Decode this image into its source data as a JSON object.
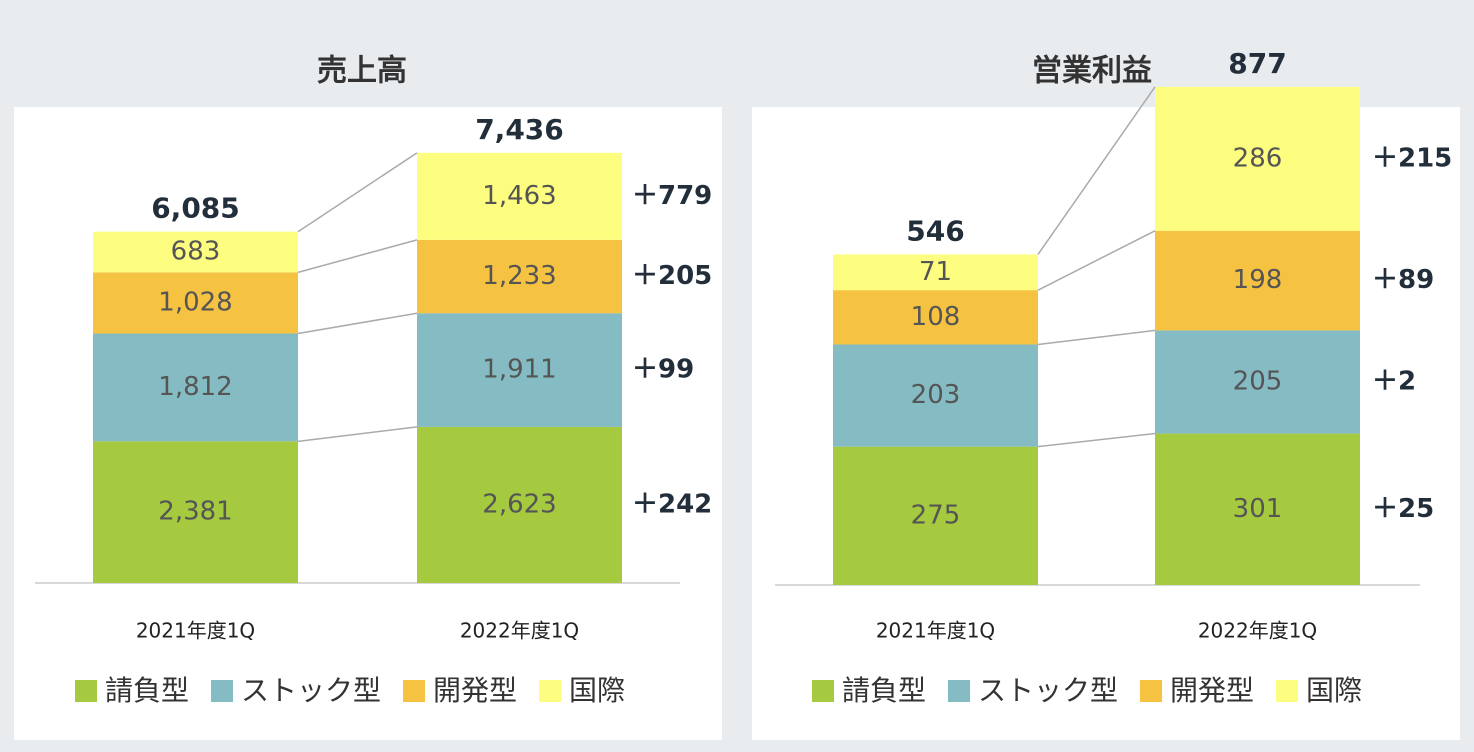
{
  "chart_data": [
    {
      "type": "stacked-bar",
      "title": "売上高",
      "categories": [
        "2021年度1Q",
        "2022年度1Q"
      ],
      "series": [
        {
          "name": "請負型",
          "color": "#a5c93f",
          "values": [
            2381,
            2623
          ],
          "value_labels": [
            "2,381",
            "2,623"
          ]
        },
        {
          "name": "ストック型",
          "color": "#85bcc4",
          "values": [
            1812,
            1911
          ],
          "value_labels": [
            "1,812",
            "1,911"
          ]
        },
        {
          "name": "開発型",
          "color": "#f5c242",
          "values": [
            1028,
            1233
          ],
          "value_labels": [
            "1,028",
            "1,233"
          ]
        },
        {
          "name": "国際",
          "color": "#fdfe7f",
          "values": [
            683,
            1463
          ],
          "value_labels": [
            "683",
            "1,463"
          ]
        }
      ],
      "totals": {
        "values": [
          6085,
          7436
        ],
        "value_labels": [
          "6,085",
          "7,436"
        ]
      },
      "differences": {
        "values": [
          242,
          99,
          205,
          779
        ],
        "value_labels": [
          "＋242",
          "＋99",
          "＋205",
          "＋779"
        ]
      },
      "ylim": [
        0,
        8000
      ]
    },
    {
      "type": "stacked-bar",
      "title": "営業利益",
      "categories": [
        "2021年度1Q",
        "2022年度1Q"
      ],
      "series": [
        {
          "name": "請負型",
          "color": "#a5c93f",
          "values": [
            275,
            301
          ]
        },
        {
          "name": "ストック型",
          "color": "#85bcc4",
          "values": [
            203,
            205
          ]
        },
        {
          "name": "開発型",
          "color": "#f5c242",
          "values": [
            108,
            198
          ]
        },
        {
          "name": "国際",
          "color": "#fdfe7f",
          "values": [
            71,
            286
          ]
        }
      ],
      "totals": {
        "values": [
          546,
          877
        ]
      },
      "differences": {
        "values": [
          25,
          2,
          89,
          215
        ],
        "value_labels": [
          "＋25",
          "＋2",
          "＋89",
          "＋215"
        ]
      },
      "ylim": [
        0,
        950
      ]
    }
  ]
}
